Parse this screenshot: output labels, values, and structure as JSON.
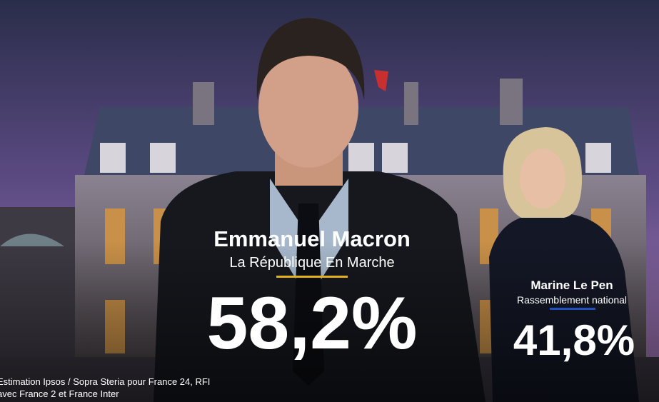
{
  "winner": {
    "name": "Emmanuel Macron",
    "party": "La République En Marche",
    "result": "58,2%"
  },
  "runner_up": {
    "name": "Marine Le Pen",
    "party": "Rassemblement national",
    "result": "41,8%"
  },
  "source": [
    "Estimation Ipsos / Sopra Steria pour France 24, RFI",
    "avec France 2 et France Inter"
  ]
}
